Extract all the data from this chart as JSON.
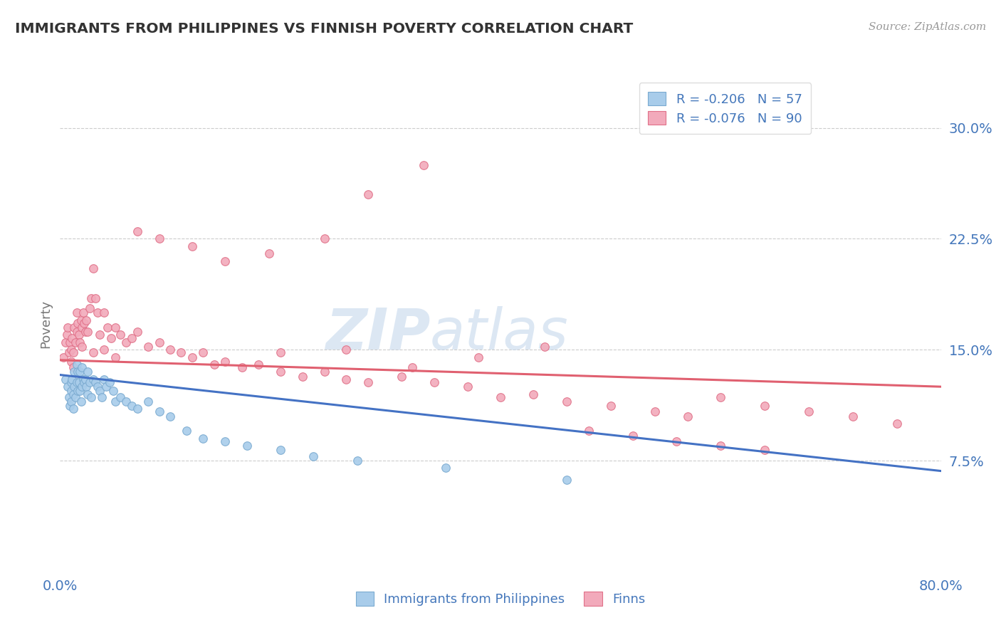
{
  "title": "IMMIGRANTS FROM PHILIPPINES VS FINNISH POVERTY CORRELATION CHART",
  "source": "Source: ZipAtlas.com",
  "ylabel": "Poverty",
  "xlim": [
    0.0,
    0.8
  ],
  "ylim": [
    0.0,
    0.335
  ],
  "legend_label1": "Immigrants from Philippines",
  "legend_label2": "Finns",
  "blue_color": "#A8CCEA",
  "pink_color": "#F2AABB",
  "blue_edge_color": "#7AAAD0",
  "pink_edge_color": "#E07088",
  "blue_line_color": "#4472C4",
  "pink_line_color": "#E06070",
  "text_color": "#4477BB",
  "watermark_color": "#C5D8EC",
  "ytick_vals": [
    0.075,
    0.15,
    0.225,
    0.3
  ],
  "ytick_labels": [
    "7.5%",
    "15.0%",
    "22.5%",
    "30.0%"
  ],
  "blue_line_y0": 0.133,
  "blue_line_y1": 0.068,
  "pink_line_y0": 0.143,
  "pink_line_y1": 0.125,
  "blue_scatter_x": [
    0.005,
    0.007,
    0.008,
    0.009,
    0.01,
    0.01,
    0.01,
    0.011,
    0.012,
    0.012,
    0.013,
    0.013,
    0.014,
    0.015,
    0.015,
    0.016,
    0.016,
    0.017,
    0.018,
    0.018,
    0.019,
    0.02,
    0.02,
    0.021,
    0.022,
    0.023,
    0.024,
    0.025,
    0.025,
    0.027,
    0.028,
    0.03,
    0.032,
    0.034,
    0.036,
    0.038,
    0.04,
    0.042,
    0.045,
    0.048,
    0.05,
    0.055,
    0.06,
    0.065,
    0.07,
    0.08,
    0.09,
    0.1,
    0.115,
    0.13,
    0.15,
    0.17,
    0.2,
    0.23,
    0.27,
    0.35,
    0.46
  ],
  "blue_scatter_y": [
    0.13,
    0.125,
    0.118,
    0.112,
    0.128,
    0.122,
    0.115,
    0.13,
    0.12,
    0.11,
    0.135,
    0.125,
    0.118,
    0.14,
    0.128,
    0.135,
    0.122,
    0.128,
    0.135,
    0.122,
    0.115,
    0.138,
    0.125,
    0.13,
    0.128,
    0.13,
    0.125,
    0.135,
    0.12,
    0.128,
    0.118,
    0.13,
    0.128,
    0.125,
    0.122,
    0.118,
    0.13,
    0.125,
    0.128,
    0.122,
    0.115,
    0.118,
    0.115,
    0.112,
    0.11,
    0.115,
    0.108,
    0.105,
    0.095,
    0.09,
    0.088,
    0.085,
    0.082,
    0.078,
    0.075,
    0.07,
    0.062
  ],
  "pink_scatter_x": [
    0.003,
    0.005,
    0.006,
    0.007,
    0.008,
    0.009,
    0.01,
    0.01,
    0.011,
    0.012,
    0.012,
    0.013,
    0.014,
    0.015,
    0.015,
    0.016,
    0.017,
    0.018,
    0.019,
    0.02,
    0.021,
    0.022,
    0.023,
    0.024,
    0.025,
    0.027,
    0.028,
    0.03,
    0.032,
    0.034,
    0.036,
    0.04,
    0.043,
    0.046,
    0.05,
    0.055,
    0.06,
    0.065,
    0.07,
    0.08,
    0.09,
    0.1,
    0.11,
    0.12,
    0.13,
    0.14,
    0.15,
    0.165,
    0.18,
    0.2,
    0.22,
    0.24,
    0.26,
    0.28,
    0.31,
    0.34,
    0.37,
    0.4,
    0.43,
    0.46,
    0.5,
    0.54,
    0.57,
    0.6,
    0.64,
    0.68,
    0.72,
    0.76,
    0.44,
    0.38,
    0.32,
    0.26,
    0.2,
    0.48,
    0.52,
    0.56,
    0.6,
    0.64,
    0.33,
    0.28,
    0.24,
    0.19,
    0.15,
    0.12,
    0.09,
    0.07,
    0.05,
    0.04,
    0.03,
    0.02
  ],
  "pink_scatter_y": [
    0.145,
    0.155,
    0.16,
    0.165,
    0.148,
    0.155,
    0.15,
    0.142,
    0.158,
    0.148,
    0.138,
    0.165,
    0.155,
    0.175,
    0.162,
    0.168,
    0.16,
    0.155,
    0.17,
    0.165,
    0.175,
    0.168,
    0.162,
    0.17,
    0.162,
    0.178,
    0.185,
    0.205,
    0.185,
    0.175,
    0.16,
    0.175,
    0.165,
    0.158,
    0.165,
    0.16,
    0.155,
    0.158,
    0.162,
    0.152,
    0.155,
    0.15,
    0.148,
    0.145,
    0.148,
    0.14,
    0.142,
    0.138,
    0.14,
    0.135,
    0.132,
    0.135,
    0.13,
    0.128,
    0.132,
    0.128,
    0.125,
    0.118,
    0.12,
    0.115,
    0.112,
    0.108,
    0.105,
    0.118,
    0.112,
    0.108,
    0.105,
    0.1,
    0.152,
    0.145,
    0.138,
    0.15,
    0.148,
    0.095,
    0.092,
    0.088,
    0.085,
    0.082,
    0.275,
    0.255,
    0.225,
    0.215,
    0.21,
    0.22,
    0.225,
    0.23,
    0.145,
    0.15,
    0.148,
    0.152
  ]
}
